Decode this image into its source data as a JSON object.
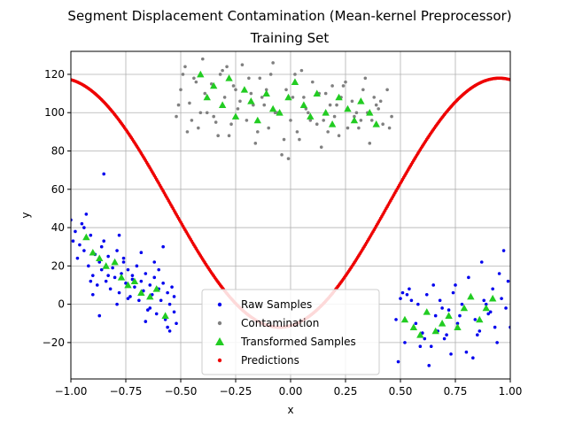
{
  "chart_data": {
    "type": "scatter",
    "title": "Segment Displacement Contamination (Mean-kernel Preprocessor)",
    "subtitle": "Training Set",
    "xlabel": "x",
    "ylabel": "y",
    "xlim": [
      -1.0,
      1.0
    ],
    "ylim": [
      -39,
      132
    ],
    "x_ticks": [
      -1.0,
      -0.75,
      -0.5,
      -0.25,
      0.0,
      0.25,
      0.5,
      0.75,
      1.0
    ],
    "x_tick_labels": [
      "−1.00",
      "−0.75",
      "−0.50",
      "−0.25",
      "0.00",
      "0.25",
      "0.50",
      "0.75",
      "1.00"
    ],
    "y_ticks": [
      -20,
      0,
      20,
      40,
      60,
      80,
      100,
      120
    ],
    "y_tick_labels": [
      "−20",
      "0",
      "20",
      "40",
      "60",
      "80",
      "100",
      "120"
    ],
    "grid": true,
    "legend_position": "lower-center",
    "series": [
      {
        "name": "Raw Samples",
        "marker": "circle",
        "color": "#0000ee",
        "x": [
          -1.0,
          -0.98,
          -0.96,
          -0.95,
          -0.94,
          -0.93,
          -0.92,
          -0.91,
          -0.9,
          -0.89,
          -0.88,
          -0.87,
          -0.86,
          -0.85,
          -0.84,
          -0.83,
          -0.82,
          -0.81,
          -0.8,
          -0.79,
          -0.78,
          -0.77,
          -0.76,
          -0.75,
          -0.74,
          -0.73,
          -0.72,
          -0.71,
          -0.7,
          -0.69,
          -0.68,
          -0.67,
          -0.66,
          -0.65,
          -0.64,
          -0.63,
          -0.62,
          -0.61,
          -0.6,
          -0.59,
          -0.58,
          -0.57,
          -0.56,
          -0.55,
          -0.54,
          -0.53,
          -0.52,
          -0.97,
          -0.94,
          -0.9,
          -0.86,
          -0.83,
          -0.79,
          -0.76,
          -0.72,
          -0.68,
          -0.64,
          -0.6,
          -0.56,
          -0.53,
          -0.99,
          -0.91,
          -0.87,
          -0.78,
          -0.74,
          -0.66,
          -0.62,
          -0.58,
          -0.55,
          -0.85,
          0.48,
          0.5,
          0.52,
          0.54,
          0.56,
          0.58,
          0.6,
          0.62,
          0.64,
          0.66,
          0.68,
          0.7,
          0.72,
          0.74,
          0.76,
          0.78,
          0.8,
          0.82,
          0.84,
          0.86,
          0.88,
          0.9,
          0.92,
          0.94,
          0.96,
          0.98,
          1.0,
          0.49,
          0.53,
          0.57,
          0.61,
          0.65,
          0.69,
          0.73,
          0.77,
          0.81,
          0.85,
          0.89,
          0.93,
          0.97,
          0.51,
          0.59,
          0.67,
          0.75,
          0.83,
          0.91,
          0.99,
          0.55,
          0.71,
          0.87,
          0.95,
          0.63
        ],
        "y": [
          44,
          38,
          31,
          42,
          28,
          47,
          20,
          36,
          15,
          26,
          10,
          22,
          18,
          33,
          12,
          25,
          8,
          19,
          14,
          28,
          6,
          16,
          22,
          11,
          18,
          4,
          15,
          9,
          20,
          2,
          12,
          7,
          16,
          -3,
          10,
          5,
          14,
          -5,
          8,
          2,
          11,
          -8,
          6,
          0,
          9,
          -4,
          -10,
          24,
          40,
          5,
          30,
          15,
          0,
          24,
          13,
          27,
          -2,
          18,
          -12,
          4,
          33,
          12,
          -6,
          36,
          3,
          -9,
          22,
          30,
          -14,
          68,
          -8,
          3,
          -20,
          8,
          -12,
          0,
          -15,
          5,
          -22,
          -6,
          2,
          -18,
          -3,
          6,
          -10,
          0,
          -25,
          4,
          -8,
          -14,
          2,
          -5,
          8,
          -20,
          3,
          -2,
          -12,
          -30,
          5,
          -10,
          -18,
          10,
          -2,
          -26,
          -6,
          14,
          -16,
          0,
          -12,
          28,
          6,
          -22,
          -14,
          10,
          -28,
          -4,
          12,
          2,
          -16,
          22,
          16,
          -32
        ],
        "note_points_omitted": false
      },
      {
        "name": "Contamination",
        "marker": "circle",
        "color": "#808080",
        "x": [
          -0.52,
          -0.5,
          -0.48,
          -0.46,
          -0.44,
          -0.42,
          -0.4,
          -0.38,
          -0.36,
          -0.34,
          -0.32,
          -0.3,
          -0.28,
          -0.26,
          -0.24,
          -0.22,
          -0.2,
          -0.18,
          -0.16,
          -0.14,
          -0.12,
          -0.1,
          -0.08,
          -0.06,
          -0.04,
          -0.02,
          0.0,
          0.02,
          0.04,
          0.06,
          0.08,
          0.1,
          0.12,
          0.14,
          0.16,
          0.18,
          0.2,
          0.22,
          0.24,
          0.26,
          0.28,
          0.3,
          0.32,
          0.34,
          0.36,
          0.38,
          0.4,
          0.42,
          0.44,
          0.46,
          -0.51,
          -0.47,
          -0.43,
          -0.39,
          -0.35,
          -0.31,
          -0.27,
          -0.23,
          -0.19,
          -0.15,
          -0.11,
          -0.07,
          -0.03,
          0.01,
          0.05,
          0.09,
          0.13,
          0.17,
          0.21,
          0.25,
          0.29,
          0.33,
          0.37,
          0.41,
          0.45,
          -0.49,
          -0.41,
          -0.33,
          -0.25,
          -0.17,
          -0.09,
          -0.01,
          0.07,
          0.15,
          0.23,
          0.31,
          0.39,
          -0.45,
          -0.29,
          -0.13,
          0.03,
          0.19,
          0.35
        ],
        "y": [
          98,
          112,
          124,
          105,
          118,
          92,
          128,
          100,
          115,
          95,
          120,
          108,
          88,
          114,
          102,
          125,
          96,
          110,
          84,
          118,
          104,
          92,
          126,
          100,
          78,
          112,
          96,
          120,
          86,
          108,
          100,
          116,
          94,
          82,
          110,
          104,
          98,
          88,
          114,
          92,
          106,
          100,
          96,
          118,
          84,
          108,
          102,
          94,
          112,
          98,
          104,
          90,
          116,
          110,
          98,
          122,
          94,
          106,
          118,
          90,
          112,
          100,
          86,
          108,
          122,
          96,
          110,
          90,
          104,
          116,
          98,
          112,
          96,
          106,
          92,
          120,
          100,
          88,
          112,
          104,
          120,
          76,
          102,
          96,
          108,
          92,
          104,
          96,
          124,
          108,
          90,
          114,
          100
        ],
        "note_points_omitted": false
      },
      {
        "name": "Transformed Samples",
        "marker": "triangle",
        "color": "#22cc22",
        "x": [
          -0.93,
          -0.9,
          -0.87,
          -0.84,
          -0.8,
          -0.77,
          -0.74,
          -0.71,
          -0.68,
          -0.64,
          -0.61,
          -0.57,
          -0.41,
          -0.38,
          -0.35,
          -0.31,
          -0.28,
          -0.25,
          -0.21,
          -0.18,
          -0.15,
          -0.11,
          -0.08,
          -0.05,
          -0.01,
          0.02,
          0.06,
          0.09,
          0.12,
          0.16,
          0.19,
          0.22,
          0.26,
          0.29,
          0.32,
          0.36,
          0.39,
          0.52,
          0.56,
          0.59,
          0.62,
          0.66,
          0.69,
          0.72,
          0.76,
          0.79,
          0.82,
          0.86,
          0.89,
          0.92
        ],
        "y": [
          35,
          27,
          24,
          20,
          22,
          14,
          10,
          12,
          6,
          4,
          8,
          -6,
          120,
          108,
          114,
          104,
          118,
          98,
          112,
          106,
          96,
          110,
          102,
          100,
          108,
          116,
          104,
          98,
          110,
          100,
          94,
          108,
          102,
          96,
          106,
          100,
          94,
          -8,
          -12,
          -16,
          -4,
          -14,
          -10,
          -6,
          -12,
          -2,
          4,
          -8,
          -2,
          3
        ],
        "note_points_omitted": false
      },
      {
        "name": "Predictions",
        "marker": "circle",
        "color": "#ee0000",
        "curve": {
          "formula": "y = a + b*sin(pi*(x + c))",
          "a": 53,
          "b": -65,
          "c": 0.55
        },
        "x_range": [
          -1.0,
          1.0
        ],
        "note_points_omitted": false
      }
    ]
  }
}
